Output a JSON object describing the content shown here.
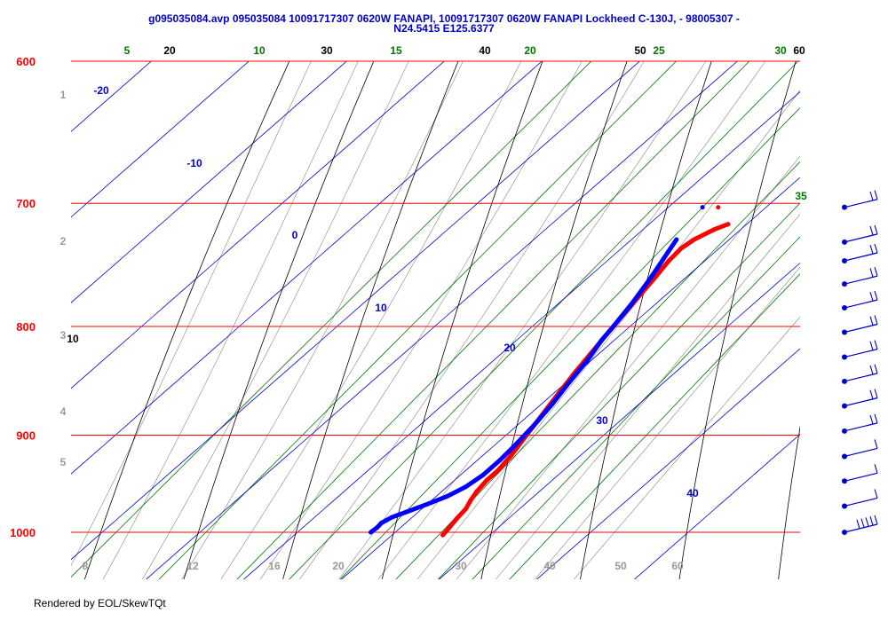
{
  "title_lines": [
    "g095035084.avp 095035084 10091717307 0620W FANAPI, 10091717307 0620W FANAPI Lockheed C-130J, - 98005307 -",
    "N24.5415 E125.6377"
  ],
  "footer": "Rendered by EOL/SkewTQt",
  "colors": {
    "pressure_lines": "#ff0000",
    "temperature_lines": "#0000cc",
    "dry_adiabats": "#000000",
    "mixing_ratio_lines": "#007700",
    "moist_adiabats": "#888888",
    "temperature_trace": "#ff0000",
    "dewpoint_trace": "#0000ff",
    "barbs": "#0000cc"
  },
  "chart_data": {
    "type": "skew-t log-p",
    "title": "g095035084.avp 095035084 10091717307 0620W FANAPI, 10091717307 0620W FANAPI Lockheed C-130J, - 98005307 - N24.5415 E125.6377",
    "pressure_levels": [
      600,
      700,
      800,
      900,
      1000
    ],
    "pressure_labels": [
      "600",
      "700",
      "800",
      "900",
      "1000"
    ],
    "ylim": [
      1010,
      600
    ],
    "xlim_temperature": [
      -10,
      45
    ],
    "isotherm_labels": [
      {
        "value": -20,
        "label": "-20"
      },
      {
        "value": -10,
        "label": "-10"
      },
      {
        "value": 0,
        "label": "0"
      },
      {
        "value": 10,
        "label": "10"
      },
      {
        "value": 20,
        "label": "20"
      },
      {
        "value": 30,
        "label": "30"
      },
      {
        "value": 40,
        "label": "40"
      }
    ],
    "dry_adiabat_labels": [
      "20",
      "30",
      "40",
      "50",
      "60",
      "10"
    ],
    "mixing_ratio_labels": [
      "5",
      "10",
      "15",
      "20",
      "25",
      "30",
      "35"
    ],
    "bottom_labels": [
      "8",
      "12",
      "16",
      "20",
      "30",
      "40",
      "50",
      "60"
    ],
    "left_labels": [
      "1",
      "2",
      "3",
      "4",
      "5"
    ],
    "temperature_profile": [
      {
        "p": 1003,
        "t": 25.2
      },
      {
        "p": 995,
        "t": 25.0
      },
      {
        "p": 985,
        "t": 24.7
      },
      {
        "p": 975,
        "t": 24.5
      },
      {
        "p": 966,
        "t": 24.0
      },
      {
        "p": 957,
        "t": 23.6
      },
      {
        "p": 945,
        "t": 23.3
      },
      {
        "p": 935,
        "t": 23.3
      },
      {
        "p": 920,
        "t": 22.9
      },
      {
        "p": 900,
        "t": 22.1
      },
      {
        "p": 880,
        "t": 21.3
      },
      {
        "p": 860,
        "t": 20.5
      },
      {
        "p": 840,
        "t": 19.7
      },
      {
        "p": 820,
        "t": 19.0
      },
      {
        "p": 800,
        "t": 18.3
      },
      {
        "p": 780,
        "t": 17.6
      },
      {
        "p": 760,
        "t": 16.9
      },
      {
        "p": 745,
        "t": 16.3
      },
      {
        "p": 735,
        "t": 16.1
      },
      {
        "p": 728,
        "t": 16.4
      },
      {
        "p": 720,
        "t": 17.3
      },
      {
        "p": 716,
        "t": 18.1
      }
    ],
    "dewpoint_profile": [
      {
        "p": 1000,
        "t": 17.5
      },
      {
        "p": 995,
        "t": 17.6
      },
      {
        "p": 990,
        "t": 17.5
      },
      {
        "p": 984,
        "t": 17.9
      },
      {
        "p": 978,
        "t": 18.8
      },
      {
        "p": 970,
        "t": 20.0
      },
      {
        "p": 962,
        "t": 21.1
      },
      {
        "p": 952,
        "t": 21.9
      },
      {
        "p": 940,
        "t": 22.3
      },
      {
        "p": 925,
        "t": 22.3
      },
      {
        "p": 910,
        "t": 22.1
      },
      {
        "p": 890,
        "t": 21.7
      },
      {
        "p": 870,
        "t": 21.1
      },
      {
        "p": 850,
        "t": 20.3
      },
      {
        "p": 830,
        "t": 19.6
      },
      {
        "p": 812,
        "t": 18.7
      },
      {
        "p": 800,
        "t": 18.3
      },
      {
        "p": 780,
        "t": 17.5
      },
      {
        "p": 760,
        "t": 16.5
      },
      {
        "p": 748,
        "t": 15.8
      },
      {
        "p": 738,
        "t": 15.2
      },
      {
        "p": 728,
        "t": 14.6
      }
    ],
    "isolated_points": [
      {
        "series": "dewpoint",
        "p": 703,
        "t": 13.5
      },
      {
        "series": "temperature",
        "p": 703,
        "t": 15.1
      }
    ],
    "wind_barbs": [
      {
        "p": 703
      },
      {
        "p": 730
      },
      {
        "p": 745
      },
      {
        "p": 764
      },
      {
        "p": 784
      },
      {
        "p": 805
      },
      {
        "p": 827
      },
      {
        "p": 849
      },
      {
        "p": 872
      },
      {
        "p": 896
      },
      {
        "p": 921
      },
      {
        "p": 946
      },
      {
        "p": 972
      },
      {
        "p": 1000
      }
    ]
  }
}
